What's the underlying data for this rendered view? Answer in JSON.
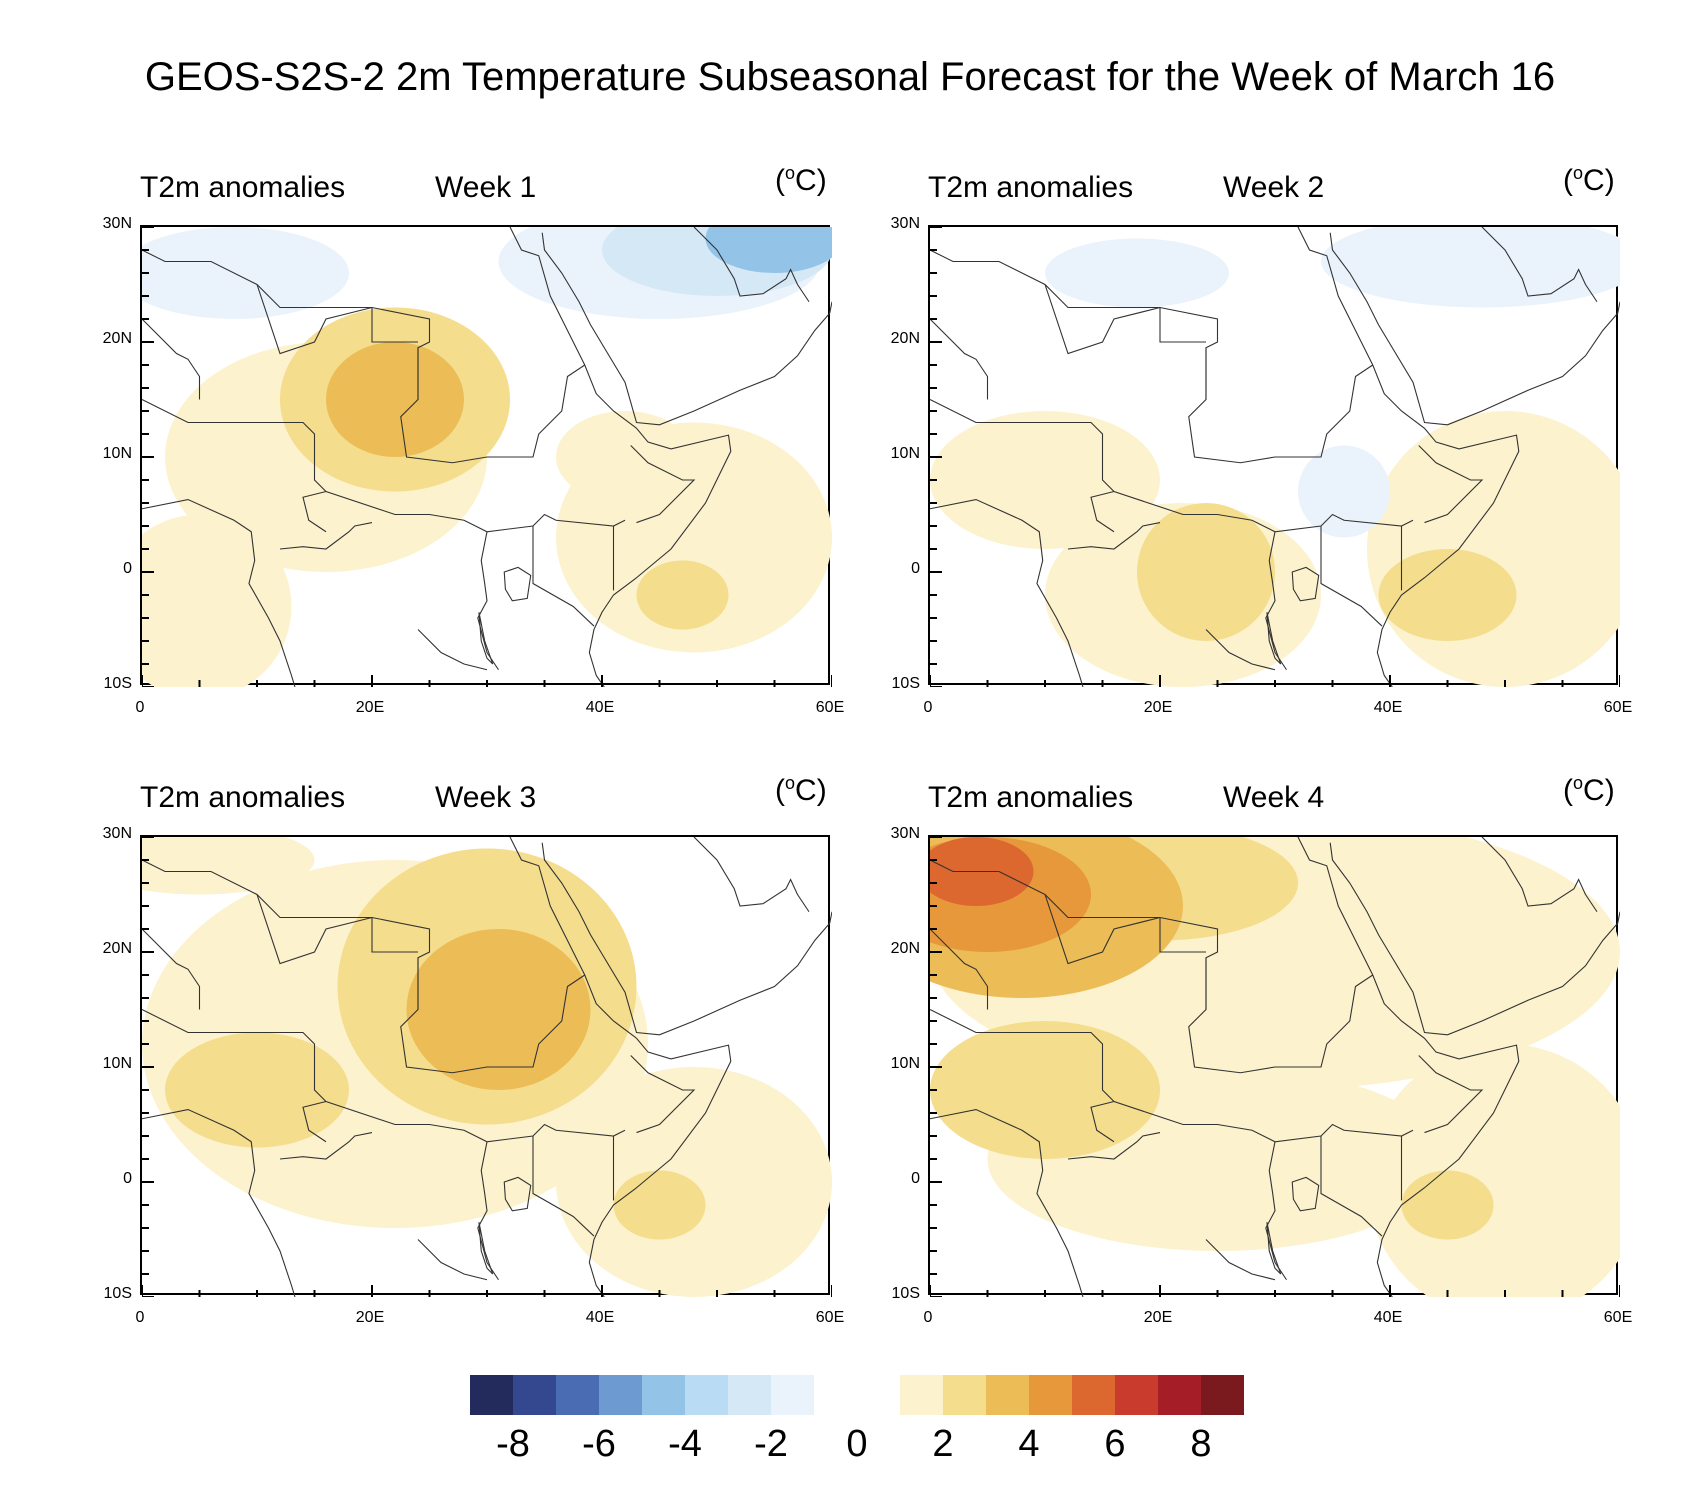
{
  "title": "GEOS-S2S-2 2m Temperature Subseasonal Forecast for the Week of March 16",
  "panels": [
    {
      "left_title": "T2m anomalies",
      "mid_title": "Week 1",
      "unit": "C",
      "lat_labels": [
        "30N",
        "20N",
        "10N",
        "0",
        "10S"
      ],
      "lon_labels": [
        "0",
        "20E",
        "40E",
        "60E"
      ]
    },
    {
      "left_title": "T2m anomalies",
      "mid_title": "Week 2",
      "unit": "C",
      "lat_labels": [
        "30N",
        "20N",
        "10N",
        "0",
        "10S"
      ],
      "lon_labels": [
        "0",
        "20E",
        "40E",
        "60E"
      ]
    },
    {
      "left_title": "T2m anomalies",
      "mid_title": "Week 3",
      "unit": "C",
      "lat_labels": [
        "30N",
        "20N",
        "10N",
        "0",
        "10S"
      ],
      "lon_labels": [
        "0",
        "20E",
        "40E",
        "60E"
      ]
    },
    {
      "left_title": "T2m anomalies",
      "mid_title": "Week 4",
      "unit": "C",
      "lat_labels": [
        "30N",
        "20N",
        "10N",
        "0",
        "10S"
      ],
      "lon_labels": [
        "0",
        "20E",
        "40E",
        "60E"
      ]
    }
  ],
  "map_extent": {
    "lon": [
      0,
      60
    ],
    "lat": [
      -10,
      30
    ]
  },
  "colorbar": {
    "labels": [
      "-8",
      "-6",
      "-4",
      "-2",
      "0",
      "2",
      "4",
      "6",
      "8"
    ],
    "negative_colors": [
      "#232a5c",
      "#33488e",
      "#4a6cb3",
      "#6d9bd1",
      "#94c3e8",
      "#b9dbf3",
      "#d5e8f6",
      "#eaf3fb"
    ],
    "positive_colors": [
      "#fcf2cd",
      "#f4dd8d",
      "#ecbc56",
      "#e6983a",
      "#dc672f",
      "#c93b2d",
      "#a51e27",
      "#7b1a1e"
    ]
  },
  "anomaly_blobs": {
    "week1": [
      {
        "lon": 22,
        "lat": 15,
        "rx": 6,
        "ry": 5,
        "level": 3
      },
      {
        "lon": 22,
        "lat": 15,
        "rx": 10,
        "ry": 8,
        "level": 2
      },
      {
        "lon": 16,
        "lat": 10,
        "rx": 14,
        "ry": 10,
        "level": 1
      },
      {
        "lon": 47,
        "lat": -2,
        "rx": 4,
        "ry": 3,
        "level": 2
      },
      {
        "lon": 48,
        "lat": 3,
        "rx": 12,
        "ry": 10,
        "level": 1
      },
      {
        "lon": 5,
        "lat": -3,
        "rx": 8,
        "ry": 8,
        "level": 1
      },
      {
        "lon": 42,
        "lat": 10,
        "rx": 6,
        "ry": 4,
        "level": 1
      },
      {
        "lon": 55,
        "lat": 29,
        "rx": 6,
        "ry": 3,
        "level": -4
      },
      {
        "lon": 50,
        "lat": 28,
        "rx": 10,
        "ry": 4,
        "level": -2
      },
      {
        "lon": 45,
        "lat": 27,
        "rx": 14,
        "ry": 5,
        "level": -1
      },
      {
        "lon": 8,
        "lat": 26,
        "rx": 10,
        "ry": 4,
        "level": -1
      }
    ],
    "week2": [
      {
        "lon": 24,
        "lat": 0,
        "rx": 6,
        "ry": 6,
        "level": 2
      },
      {
        "lon": 22,
        "lat": -2,
        "rx": 12,
        "ry": 8,
        "level": 1
      },
      {
        "lon": 45,
        "lat": -2,
        "rx": 6,
        "ry": 4,
        "level": 2
      },
      {
        "lon": 50,
        "lat": 2,
        "rx": 12,
        "ry": 12,
        "level": 1
      },
      {
        "lon": 10,
        "lat": 8,
        "rx": 10,
        "ry": 6,
        "level": 1
      },
      {
        "lon": 48,
        "lat": 27,
        "rx": 14,
        "ry": 4,
        "level": -1
      },
      {
        "lon": 18,
        "lat": 26,
        "rx": 8,
        "ry": 3,
        "level": -1
      },
      {
        "lon": 36,
        "lat": 7,
        "rx": 4,
        "ry": 4,
        "level": -1
      }
    ],
    "week3": [
      {
        "lon": 31,
        "lat": 15,
        "rx": 8,
        "ry": 7,
        "level": 3
      },
      {
        "lon": 30,
        "lat": 17,
        "rx": 13,
        "ry": 12,
        "level": 2
      },
      {
        "lon": 22,
        "lat": 12,
        "rx": 22,
        "ry": 16,
        "level": 1
      },
      {
        "lon": 45,
        "lat": -2,
        "rx": 4,
        "ry": 3,
        "level": 2
      },
      {
        "lon": 48,
        "lat": 0,
        "rx": 12,
        "ry": 10,
        "level": 1
      },
      {
        "lon": 10,
        "lat": 8,
        "rx": 8,
        "ry": 5,
        "level": 2
      },
      {
        "lon": 5,
        "lat": 28,
        "rx": 10,
        "ry": 3,
        "level": 1
      }
    ],
    "week4": [
      {
        "lon": 4,
        "lat": 27,
        "rx": 5,
        "ry": 3,
        "level": 5
      },
      {
        "lon": 5,
        "lat": 25,
        "rx": 9,
        "ry": 5,
        "level": 4
      },
      {
        "lon": 8,
        "lat": 24,
        "rx": 14,
        "ry": 8,
        "level": 3
      },
      {
        "lon": 20,
        "lat": 26,
        "rx": 12,
        "ry": 5,
        "level": 2
      },
      {
        "lon": 30,
        "lat": 20,
        "rx": 30,
        "ry": 12,
        "level": 1
      },
      {
        "lon": 10,
        "lat": 8,
        "rx": 10,
        "ry": 6,
        "level": 2
      },
      {
        "lon": 25,
        "lat": 2,
        "rx": 20,
        "ry": 8,
        "level": 1
      },
      {
        "lon": 45,
        "lat": -2,
        "rx": 4,
        "ry": 3,
        "level": 2
      },
      {
        "lon": 50,
        "lat": 0,
        "rx": 12,
        "ry": 12,
        "level": 1
      }
    ]
  }
}
